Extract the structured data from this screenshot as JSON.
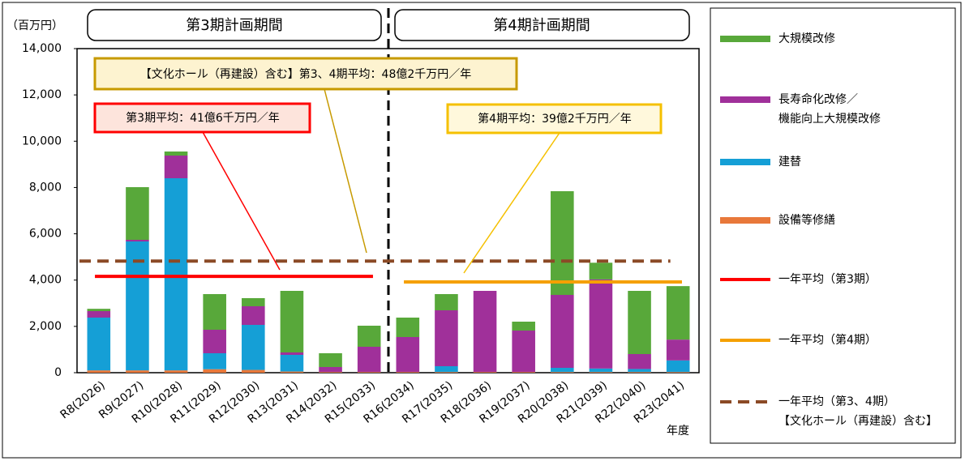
{
  "chart_data": {
    "type": "stacked-bar",
    "y_unit": "（百万円）",
    "x_unit": "年度",
    "period_labels": [
      "第3期計画期間",
      "第4期計画期間"
    ],
    "callouts": [
      "【文化ホール（再建設）含む】第3、4期平均：48億2千万円／年",
      "第3期平均：41億6千万円／年",
      "第4期平均：39億2千万円／年"
    ],
    "categories": [
      "R8(2026)",
      "R9(2027)",
      "R10(2028)",
      "R11(2029)",
      "R12(2030)",
      "R13(2031)",
      "R14(2032)",
      "R15(2033)",
      "R16(2034)",
      "R17(2035)",
      "R18(2036)",
      "R19(2037)",
      "R20(2038)",
      "R21(2039)",
      "R22(2040)",
      "R23(2041)"
    ],
    "series": [
      {
        "name": "設備等修繕",
        "color": "#e8783a",
        "values": [
          100,
          100,
          100,
          150,
          120,
          50,
          30,
          30,
          30,
          30,
          30,
          30,
          30,
          30,
          30,
          30
        ]
      },
      {
        "name": "建替",
        "color": "#159fd6",
        "values": [
          2280,
          5570,
          8300,
          690,
          1945,
          720,
          0,
          0,
          0,
          250,
          0,
          0,
          180,
          150,
          130,
          500
        ]
      },
      {
        "name": "長寿命化改修／\n機能向上大規模改修",
        "color": "#a0309a",
        "values": [
          280,
          70,
          980,
          1015,
          805,
          105,
          215,
          1090,
          1510,
          2415,
          3505,
          1790,
          3150,
          3850,
          645,
          900
        ]
      },
      {
        "name": "大規模改修",
        "color": "#58a83a",
        "values": [
          100,
          2275,
          175,
          1540,
          350,
          2660,
          595,
          910,
          840,
          700,
          0,
          385,
          4480,
          720,
          2730,
          2310
        ]
      }
    ],
    "average_lines": [
      {
        "name": "一年平均（第3期）",
        "color": "#ff0000",
        "dashed": false,
        "value": 4160
      },
      {
        "name": "一年平均（第4期）",
        "color": "#f5a000",
        "dashed": false,
        "value": 3920
      },
      {
        "name": "一年平均（第3、4期）\n【文化ホール（再建設）含む】",
        "color": "#8b4a26",
        "dashed": true,
        "value": 4820
      }
    ],
    "ylim": [
      0,
      14000
    ],
    "yticks": [
      0,
      {
        "value": 2000,
        "label": "2,000"
      },
      {
        "value": 4000,
        "label": "4,000"
      },
      {
        "value": 6000,
        "label": "6,000"
      },
      {
        "value": 8000,
        "label": "8,000"
      },
      {
        "value": 10000,
        "label": "10,000"
      },
      {
        "value": 12000,
        "label": "12,000"
      },
      {
        "value": 14000,
        "label": "14,000"
      }
    ]
  }
}
